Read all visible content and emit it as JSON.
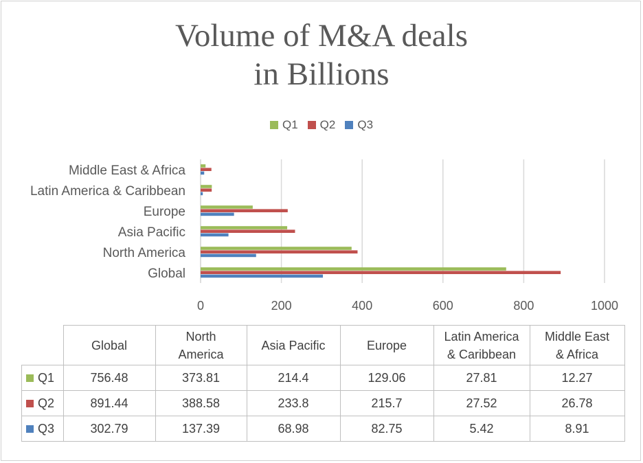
{
  "chart_data": {
    "type": "bar",
    "orientation": "horizontal",
    "title_line1": "Volume of M&A deals",
    "title_line2": "in Billions",
    "categories": [
      "Global",
      "North America",
      "Asia Pacific",
      "Europe",
      "Latin America & Caribbean",
      "Middle East & Africa"
    ],
    "series": [
      {
        "name": "Q1",
        "color": "#9bbb59",
        "values": [
          756.48,
          373.81,
          214.4,
          129.06,
          27.81,
          12.27
        ],
        "labels": [
          "756.48",
          "373.81",
          "214.4",
          "129.06",
          "27.81",
          "12.27"
        ]
      },
      {
        "name": "Q2",
        "color": "#c0504d",
        "values": [
          891.44,
          388.58,
          233.8,
          215.7,
          27.52,
          26.78
        ],
        "labels": [
          "891.44",
          "388.58",
          "233.8",
          "215.7",
          "27.52",
          "26.78"
        ]
      },
      {
        "name": "Q3",
        "color": "#4f81bd",
        "values": [
          302.79,
          137.39,
          68.98,
          82.75,
          5.42,
          8.91
        ],
        "labels": [
          "302.79",
          "137.39",
          "68.98",
          "82.75",
          "5.42",
          "8.91"
        ]
      }
    ],
    "xlim": [
      0,
      1000
    ],
    "xticks": [
      0,
      200,
      400,
      600,
      800,
      1000
    ],
    "xtick_labels": [
      "0",
      "200",
      "400",
      "600",
      "800",
      "1000"
    ],
    "legend_position": "top",
    "grid": true
  },
  "table": {
    "headers": [
      [
        "Global"
      ],
      [
        "North",
        "America"
      ],
      [
        "Asia Pacific"
      ],
      [
        "Europe"
      ],
      [
        "Latin America",
        "& Caribbean"
      ],
      [
        "Middle East",
        "& Africa"
      ]
    ]
  }
}
